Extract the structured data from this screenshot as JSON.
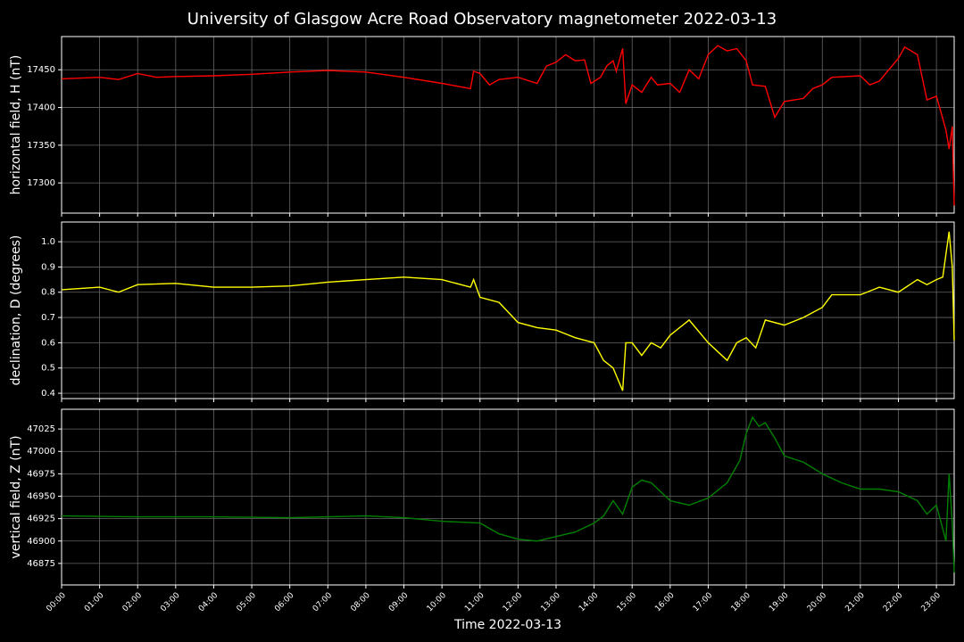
{
  "title": "University of Glasgow Acre Road Observatory magnetometer 2022-03-13",
  "chart_data": [
    {
      "type": "line",
      "ylabel": "horizontal field, H (nT)",
      "color": "#ff0000",
      "grid": true,
      "xlim": [
        "00:00",
        "23:28"
      ],
      "ylim": [
        17260,
        17494
      ],
      "yticks": [
        17300,
        17350,
        17400,
        17450
      ],
      "x": [
        "00:00",
        "01:00",
        "01:30",
        "02:00",
        "02:30",
        "03:00",
        "04:00",
        "05:00",
        "06:00",
        "07:00",
        "08:00",
        "09:00",
        "10:00",
        "10:45",
        "10:50",
        "11:00",
        "11:15",
        "11:30",
        "12:00",
        "12:30",
        "12:45",
        "13:00",
        "13:15",
        "13:30",
        "13:45",
        "13:55",
        "14:10",
        "14:20",
        "14:30",
        "14:35",
        "14:45",
        "14:50",
        "15:00",
        "15:15",
        "15:30",
        "15:40",
        "16:00",
        "16:15",
        "16:30",
        "16:45",
        "17:00",
        "17:15",
        "17:30",
        "17:45",
        "18:00",
        "18:10",
        "18:30",
        "18:45",
        "19:00",
        "19:30",
        "19:45",
        "20:00",
        "20:15",
        "21:00",
        "21:15",
        "21:30",
        "21:45",
        "22:00",
        "22:10",
        "22:30",
        "22:45",
        "23:00",
        "23:15",
        "23:20",
        "23:25",
        "23:28"
      ],
      "values": [
        17438,
        17440,
        17437,
        17445,
        17440,
        17441,
        17442,
        17444,
        17447,
        17449,
        17447,
        17440,
        17432,
        17425,
        17448,
        17445,
        17430,
        17437,
        17440,
        17432,
        17455,
        17460,
        17470,
        17462,
        17463,
        17432,
        17440,
        17455,
        17462,
        17448,
        17478,
        17405,
        17430,
        17420,
        17440,
        17430,
        17432,
        17420,
        17450,
        17438,
        17470,
        17482,
        17475,
        17478,
        17462,
        17430,
        17428,
        17387,
        17408,
        17412,
        17425,
        17430,
        17440,
        17442,
        17430,
        17435,
        17450,
        17465,
        17480,
        17470,
        17410,
        17415,
        17370,
        17345,
        17375,
        17270
      ]
    },
    {
      "type": "line",
      "ylabel": "declination, D (degrees)",
      "color": "#ffff00",
      "grid": true,
      "xlim": [
        "00:00",
        "23:28"
      ],
      "ylim": [
        0.379,
        1.078
      ],
      "yticks": [
        0.4,
        0.5,
        0.6,
        0.7,
        0.8,
        0.9,
        {
          "value": 1,
          "label": "1.0"
        }
      ],
      "x": [
        "00:00",
        "01:00",
        "01:30",
        "02:00",
        "03:00",
        "04:00",
        "05:00",
        "06:00",
        "07:00",
        "08:00",
        "09:00",
        "10:00",
        "10:45",
        "10:50",
        "11:00",
        "11:30",
        "12:00",
        "12:30",
        "13:00",
        "13:30",
        "14:00",
        "14:15",
        "14:30",
        "14:45",
        "14:50",
        "15:00",
        "15:15",
        "15:30",
        "15:45",
        "16:00",
        "16:30",
        "17:00",
        "17:30",
        "17:45",
        "18:00",
        "18:15",
        "18:30",
        "19:00",
        "19:30",
        "20:00",
        "20:15",
        "21:00",
        "21:30",
        "22:00",
        "22:30",
        "22:45",
        "23:00",
        "23:10",
        "23:20",
        "23:25",
        "23:28"
      ],
      "values": [
        0.81,
        0.82,
        0.8,
        0.83,
        0.835,
        0.82,
        0.82,
        0.825,
        0.84,
        0.85,
        0.86,
        0.85,
        0.82,
        0.85,
        0.78,
        0.76,
        0.68,
        0.66,
        0.65,
        0.62,
        0.6,
        0.53,
        0.5,
        0.41,
        0.6,
        0.6,
        0.55,
        0.6,
        0.58,
        0.63,
        0.69,
        0.6,
        0.53,
        0.6,
        0.62,
        0.58,
        0.69,
        0.67,
        0.7,
        0.74,
        0.79,
        0.79,
        0.82,
        0.8,
        0.85,
        0.83,
        0.85,
        0.86,
        1.04,
        0.9,
        0.61
      ]
    },
    {
      "type": "line",
      "ylabel": "vertical field, Z (nT)",
      "color": "#008000",
      "grid": true,
      "xlabel": "Time 2022-03-13",
      "xlim": [
        "00:00",
        "23:28"
      ],
      "ylim": [
        46851,
        47047
      ],
      "yticks": [
        46875,
        46900,
        46925,
        46950,
        46975,
        47000,
        47025
      ],
      "xticks": [
        "00:00",
        "01:00",
        "02:00",
        "03:00",
        "04:00",
        "05:00",
        "06:00",
        "07:00",
        "08:00",
        "09:00",
        "10:00",
        "11:00",
        "12:00",
        "13:00",
        "14:00",
        "15:00",
        "16:00",
        "17:00",
        "18:00",
        "19:00",
        "20:00",
        "21:00",
        "22:00",
        "23:00"
      ],
      "x": [
        "00:00",
        "02:00",
        "04:00",
        "06:00",
        "08:00",
        "09:00",
        "10:00",
        "11:00",
        "11:30",
        "12:00",
        "12:30",
        "13:00",
        "13:30",
        "14:00",
        "14:15",
        "14:30",
        "14:45",
        "15:00",
        "15:15",
        "15:30",
        "16:00",
        "16:30",
        "17:00",
        "17:30",
        "17:50",
        "18:00",
        "18:10",
        "18:20",
        "18:30",
        "18:45",
        "19:00",
        "19:30",
        "20:00",
        "20:30",
        "21:00",
        "21:30",
        "22:00",
        "22:30",
        "22:45",
        "23:00",
        "23:15",
        "23:20",
        "23:25",
        "23:28"
      ],
      "values": [
        46928,
        46927,
        46927,
        46926,
        46928,
        46926,
        46922,
        46920,
        46908,
        46902,
        46900,
        46905,
        46910,
        46920,
        46928,
        46945,
        46930,
        46960,
        46968,
        46965,
        46945,
        46940,
        46948,
        46965,
        46990,
        47020,
        47038,
        47028,
        47032,
        47015,
        46995,
        46988,
        46975,
        46965,
        46958,
        46958,
        46955,
        46945,
        46930,
        46940,
        46900,
        46975,
        46920,
        46865
      ]
    }
  ]
}
